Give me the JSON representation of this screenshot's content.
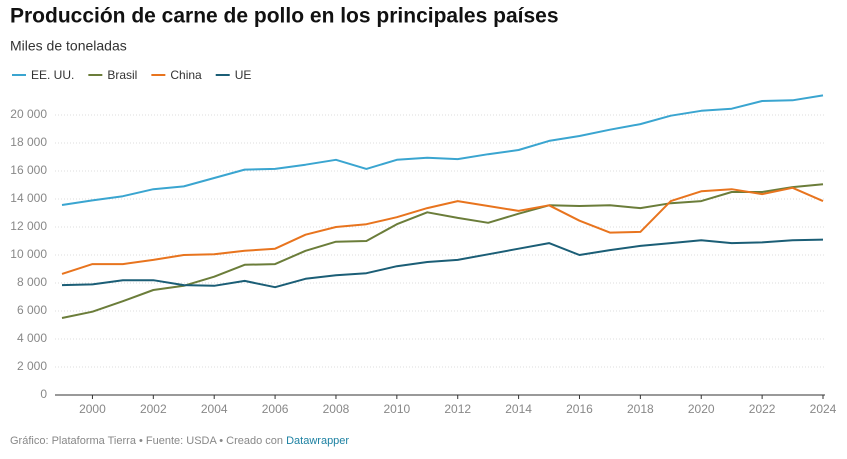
{
  "chart_data": {
    "type": "line",
    "title": "Producción de carne de pollo en los principales países",
    "subtitle": "Miles de toneladas",
    "footer": "Gráfico: Plataforma Tierra • Fuente: USDA • Creado con",
    "footer_link": "Datawrapper",
    "x": [
      1999,
      2000,
      2001,
      2002,
      2003,
      2004,
      2005,
      2006,
      2007,
      2008,
      2009,
      2010,
      2011,
      2012,
      2013,
      2014,
      2015,
      2016,
      2017,
      2018,
      2019,
      2020,
      2021,
      2022,
      2023,
      2024
    ],
    "xlim": [
      1999,
      2024
    ],
    "xticks": [
      2000,
      2002,
      2004,
      2006,
      2008,
      2010,
      2012,
      2014,
      2016,
      2018,
      2020,
      2022,
      2024
    ],
    "ylim": [
      0,
      21500
    ],
    "yticks": [
      0,
      {
        "value": 2000,
        "label": "2 000"
      },
      {
        "value": 4000,
        "label": "4 000"
      },
      {
        "value": 6000,
        "label": "6 000"
      },
      {
        "value": 8000,
        "label": "8 000"
      },
      {
        "value": 10000,
        "label": "10 000"
      },
      {
        "value": 12000,
        "label": "12 000"
      },
      {
        "value": 14000,
        "label": "14 000"
      },
      {
        "value": 16000,
        "label": "16 000"
      },
      {
        "value": 18000,
        "label": "18 000"
      },
      {
        "value": 20000,
        "label": "20 000"
      }
    ],
    "grid": true,
    "legend": "top-left",
    "series": [
      {
        "name": "EE. UU.",
        "color": "#3aa5d0",
        "values": [
          13570,
          13900,
          14200,
          14700,
          14900,
          15500,
          16100,
          16150,
          16450,
          16800,
          16150,
          16800,
          16950,
          16850,
          17200,
          17500,
          18150,
          18500,
          18950,
          19350,
          19950,
          20300,
          20450,
          21000,
          21050,
          21400
        ]
      },
      {
        "name": "Brasil",
        "color": "#6b7d3a",
        "values": [
          5500,
          5950,
          6700,
          7500,
          7800,
          8450,
          9300,
          9350,
          10300,
          10950,
          11000,
          12200,
          13050,
          12650,
          12300,
          12950,
          13550,
          13500,
          13550,
          13350,
          13700,
          13850,
          14500,
          14500,
          14850,
          15050
        ]
      },
      {
        "name": "China",
        "color": "#e8741e",
        "values": [
          8650,
          9350,
          9350,
          9650,
          10000,
          10050,
          10300,
          10450,
          11450,
          12000,
          12200,
          12700,
          13350,
          13850,
          13500,
          13150,
          13550,
          12450,
          11600,
          11650,
          13850,
          14550,
          14700,
          14350,
          14800,
          13850
        ]
      },
      {
        "name": "UE",
        "color": "#1b5e76",
        "values": [
          7850,
          7900,
          8200,
          8200,
          7850,
          7800,
          8150,
          7700,
          8300,
          8550,
          8700,
          9200,
          9500,
          9650,
          10050,
          10450,
          10850,
          10000,
          10350,
          10650,
          10850,
          11050,
          10850,
          10900,
          11050,
          11100
        ]
      }
    ]
  }
}
